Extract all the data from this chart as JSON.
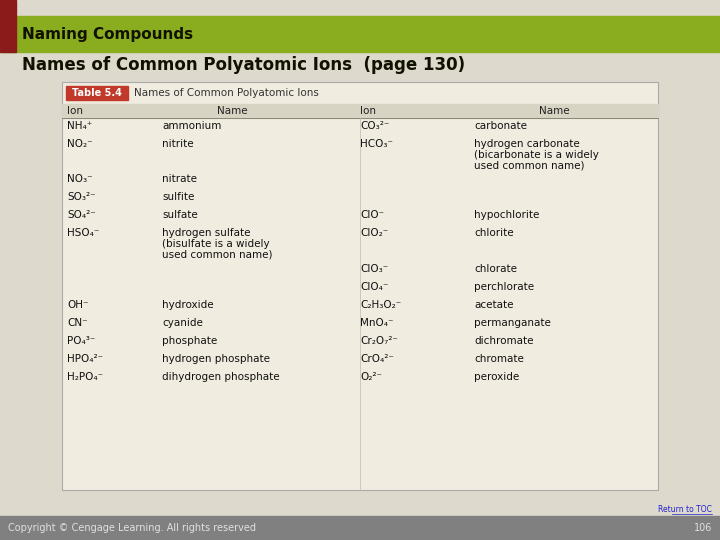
{
  "title_bar": "Naming Compounds",
  "subtitle": "Names of Common Polyatomic Ions  (page 130)",
  "table_title": "Names of Common Polyatomic Ions",
  "table_label": "Table 5.4",
  "bg_color": "#ddd9cc",
  "header_bar_color": "#8aac1f",
  "dark_red": "#8b1a1a",
  "table_bg": "#f0ece0",
  "footer_bg": "#808080",
  "left_ions": [
    "NH₄⁺",
    "NO₂⁻",
    "NO₃⁻",
    "SO₃²⁻",
    "SO₄²⁻",
    "HSO₄⁻",
    "",
    "",
    "OH⁻",
    "CN⁻",
    "PO₄³⁻",
    "HPO₄²⁻",
    "H₂PO₄⁻"
  ],
  "left_names": [
    "ammonium",
    "nitrite",
    "nitrate",
    "sulfite",
    "sulfate",
    "hydrogen sulfate\n(bisulfate is a widely\nused common name)",
    "",
    "",
    "hydroxide",
    "cyanide",
    "phosphate",
    "hydrogen phosphate",
    "dihydrogen phosphate"
  ],
  "right_ions": [
    "CO₃²⁻",
    "HCO₃⁻",
    "",
    "",
    "ClO⁻",
    "ClO₂⁻",
    "ClO₃⁻",
    "ClO₄⁻",
    "C₂H₃O₂⁻",
    "MnO₄⁻",
    "Cr₂O₇²⁻",
    "CrO₄²⁻",
    "O₂²⁻"
  ],
  "right_names": [
    "carbonate",
    "hydrogen carbonate\n(bicarbonate is a widely\nused common name)",
    "",
    "",
    "hypochlorite",
    "chlorite",
    "chlorate",
    "perchlorate",
    "acetate",
    "permanganate",
    "dichromate",
    "chromate",
    "peroxide"
  ],
  "copyright": "Copyright © Cengage Learning. All rights reserved",
  "page_num": "106",
  "return_toc": "Return to TOC"
}
